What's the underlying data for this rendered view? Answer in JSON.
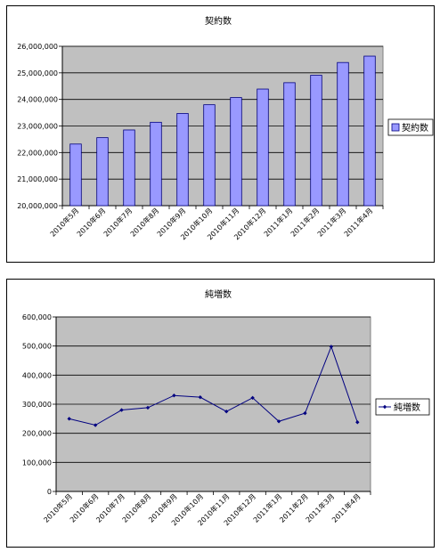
{
  "chart_data": [
    {
      "type": "bar",
      "title": "契約数",
      "categories": [
        "2010年5月",
        "2010年6月",
        "2010年7月",
        "2010年8月",
        "2010年9月",
        "2010年10月",
        "2010年11月",
        "2010年12月",
        "2011年1月",
        "2011年2月",
        "2011年3月",
        "2011年4月"
      ],
      "series": [
        {
          "name": "契約数",
          "values": [
            22320000,
            22560000,
            22850000,
            23140000,
            23470000,
            23800000,
            24070000,
            24390000,
            24630000,
            24910000,
            25390000,
            25630000
          ]
        }
      ],
      "ylim": [
        20000000,
        26000000
      ],
      "yticks": [
        "20,000,000",
        "21,000,000",
        "22,000,000",
        "23,000,000",
        "24,000,000",
        "25,000,000",
        "26,000,000"
      ],
      "xlabel": "",
      "ylabel": "",
      "grid": true,
      "legend": "right",
      "colors": {
        "bar": "#9999FF",
        "bar_edge": "#000080",
        "plot_bg": "#C0C0C0"
      }
    },
    {
      "type": "line",
      "title": "純増数",
      "categories": [
        "2010年5月",
        "2010年6月",
        "2010年7月",
        "2010年8月",
        "2010年9月",
        "2010年10月",
        "2010年11月",
        "2010年12月",
        "2011年1月",
        "2011年2月",
        "2011年3月",
        "2011年4月"
      ],
      "series": [
        {
          "name": "純増数",
          "values": [
            250000,
            228000,
            280000,
            288000,
            330000,
            324000,
            275000,
            322000,
            241000,
            269000,
            498000,
            238000
          ]
        }
      ],
      "ylim": [
        0,
        600000
      ],
      "yticks": [
        "0",
        "100,000",
        "200,000",
        "300,000",
        "400,000",
        "500,000",
        "600,000"
      ],
      "xlabel": "",
      "ylabel": "",
      "grid": true,
      "legend": "right",
      "colors": {
        "line": "#000080",
        "plot_bg": "#C0C0C0"
      }
    }
  ]
}
